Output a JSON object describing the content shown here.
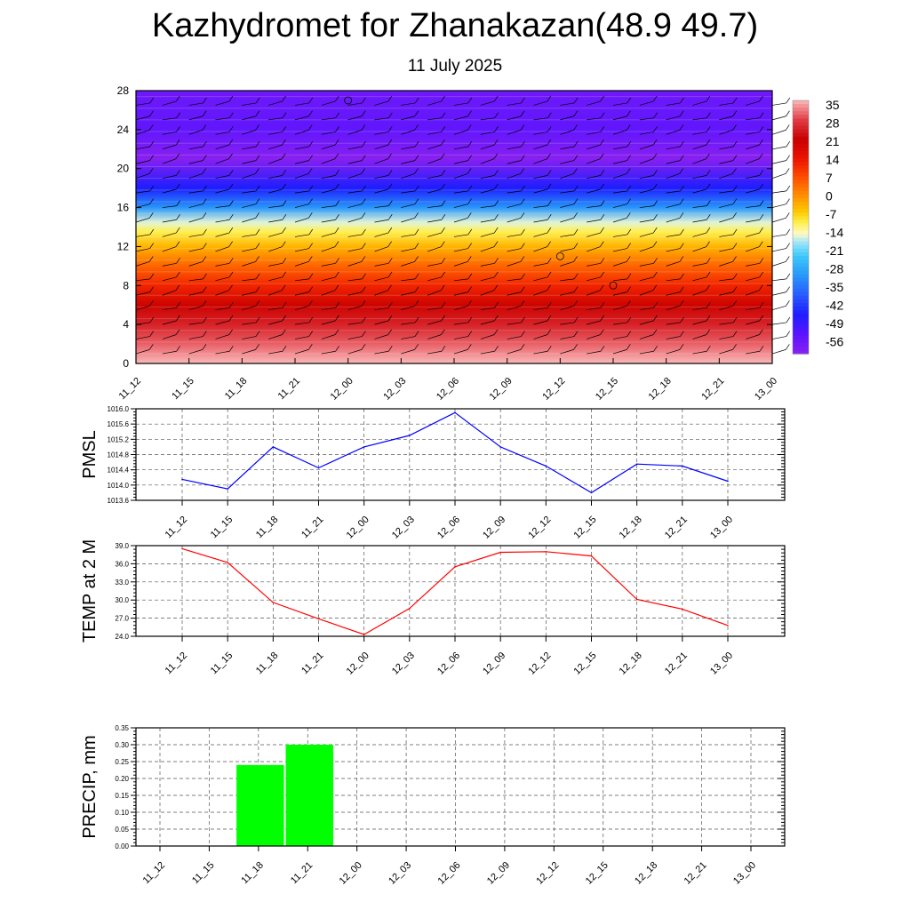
{
  "header": {
    "title": "Kazhydromet for Zhanakazan(48.9 49.7)",
    "subtitle": "11 July 2025"
  },
  "chart_data": [
    {
      "type": "heatmap",
      "title": "",
      "x_ticks": [
        "11_12",
        "11_15",
        "11_18",
        "11_21",
        "12_00",
        "12_03",
        "12_06",
        "12_09",
        "12_12",
        "12_15",
        "12_18",
        "12_21",
        "13_00"
      ],
      "y_ticks": [
        0,
        4,
        8,
        12,
        16,
        20,
        24,
        28
      ],
      "ylim": [
        0,
        28
      ],
      "colorbar_labels": [
        35,
        28,
        21,
        14,
        7,
        0,
        -7,
        -14,
        -21,
        -28,
        -35,
        -42,
        -49,
        -56
      ],
      "bands": [
        {
          "level": 0,
          "value": 35
        },
        {
          "level": 2,
          "value": 30
        },
        {
          "level": 4,
          "value": 25
        },
        {
          "level": 6,
          "value": 20
        },
        {
          "level": 8,
          "value": 12
        },
        {
          "level": 10,
          "value": 5
        },
        {
          "level": 12,
          "value": -3
        },
        {
          "level": 13.5,
          "value": -9
        },
        {
          "level": 14.5,
          "value": -14
        },
        {
          "level": 16,
          "value": -28
        },
        {
          "level": 18,
          "value": -42
        },
        {
          "level": 21,
          "value": -56
        },
        {
          "level": 24,
          "value": -50
        },
        {
          "level": 28,
          "value": -52
        }
      ],
      "wind_barbs": true
    },
    {
      "type": "line",
      "ylabel": "PMSL",
      "x": [
        "11_12",
        "11_15",
        "11_18",
        "11_21",
        "12_00",
        "12_03",
        "12_06",
        "12_09",
        "12_12",
        "12_15",
        "12_18",
        "12_21",
        "13_00"
      ],
      "ylim": [
        1013.6,
        1016.0
      ],
      "y_ticks": [
        "1013.6",
        "1014.0",
        "1014.4",
        "1014.8",
        "1015.2",
        "1015.6",
        "1016.0"
      ],
      "series": [
        {
          "values": [
            1014.15,
            1013.9,
            1015.0,
            1014.45,
            1015.0,
            1015.3,
            1015.9,
            1015.0,
            1014.5,
            1013.8,
            1014.55,
            1014.5,
            1014.1
          ],
          "color": "#0000ff"
        }
      ]
    },
    {
      "type": "line",
      "ylabel": "TEMP at 2 M",
      "x": [
        "11_12",
        "11_15",
        "11_18",
        "11_21",
        "12_00",
        "12_03",
        "12_06",
        "12_09",
        "12_12",
        "12_15",
        "12_18",
        "12_21",
        "13_00"
      ],
      "ylim": [
        24.0,
        39.0
      ],
      "y_ticks": [
        "24.0",
        "27.0",
        "30.0",
        "33.0",
        "36.0",
        "39.0"
      ],
      "series": [
        {
          "values": [
            38.5,
            36.2,
            29.6,
            26.9,
            24.3,
            28.6,
            35.5,
            37.9,
            38.0,
            37.3,
            30.1,
            28.5,
            25.8
          ],
          "color": "#ff0000"
        }
      ]
    },
    {
      "type": "bar",
      "ylabel": "PRECIP, mm",
      "categories": [
        "11_12",
        "11_15",
        "11_18",
        "11_21",
        "12_00",
        "12_03",
        "12_06",
        "12_09",
        "12_12",
        "12_15",
        "12_18",
        "12_21",
        "13_00"
      ],
      "ylim": [
        0,
        0.35
      ],
      "y_ticks": [
        "0.00",
        "0.05",
        "0.10",
        "0.15",
        "0.20",
        "0.25",
        "0.30",
        "0.35"
      ],
      "values": [
        0,
        0,
        0.24,
        0.3,
        0,
        0,
        0,
        0,
        0,
        0,
        0,
        0,
        0
      ],
      "color": "#00ff00"
    }
  ]
}
